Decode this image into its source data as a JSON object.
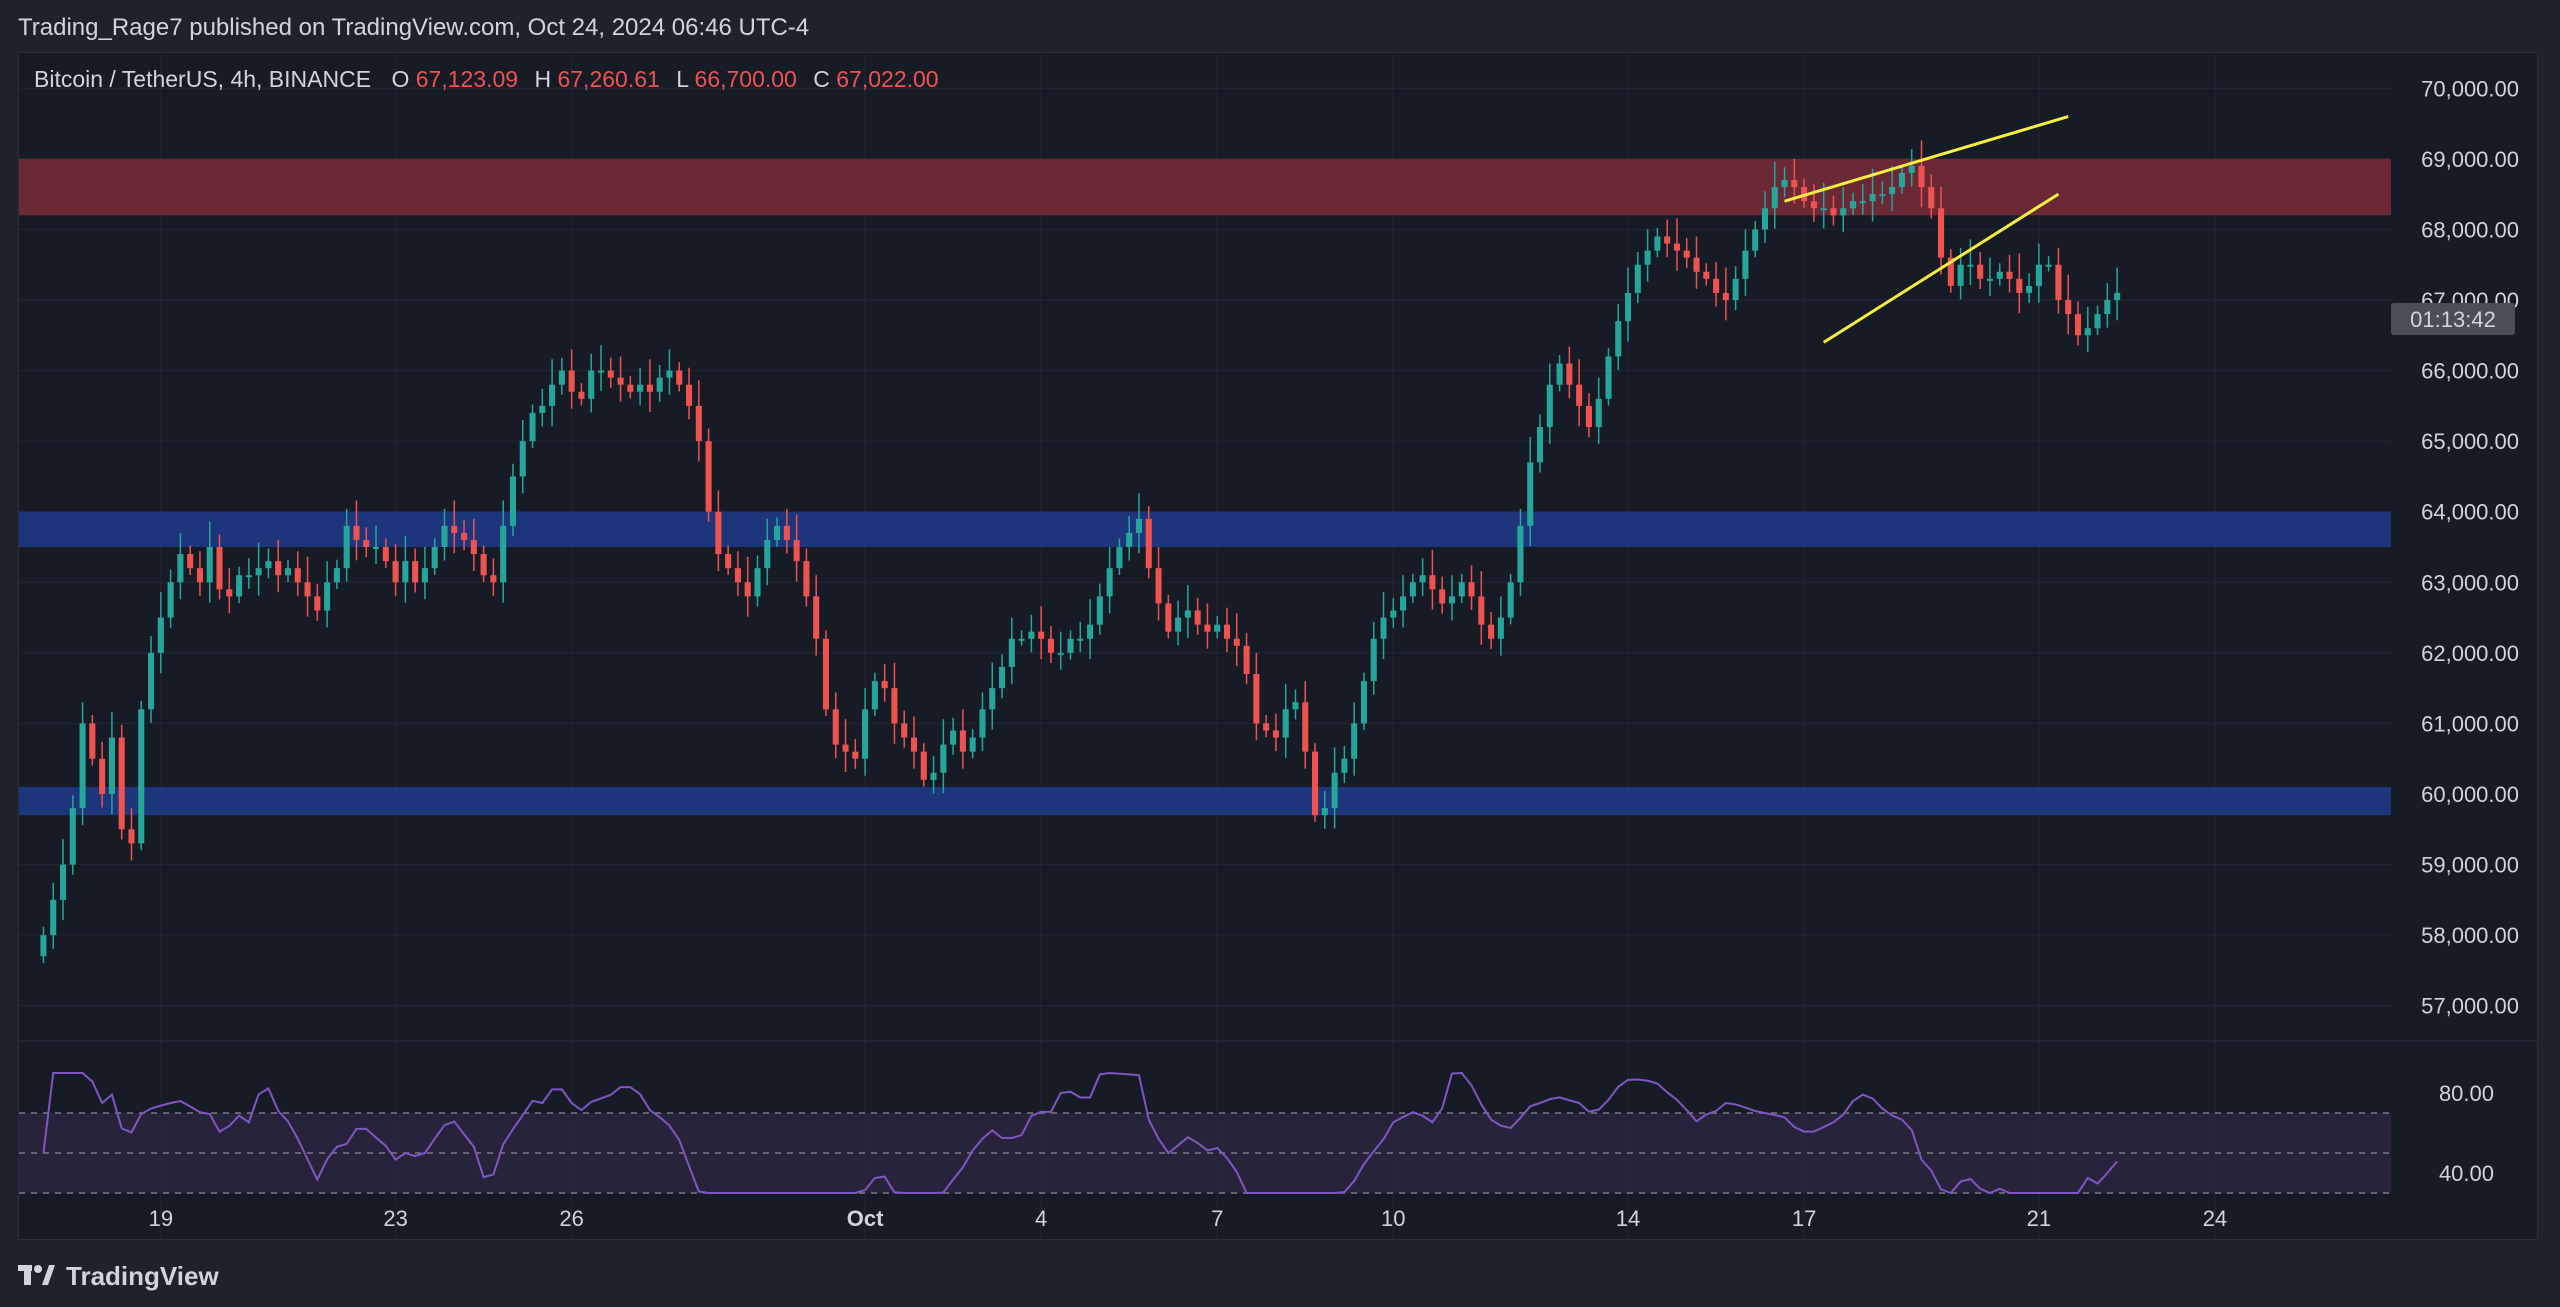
{
  "publish_info": "Trading_Rage7 published on TradingView.com, Oct 24, 2024 06:46 UTC-4",
  "symbol": {
    "name": "Bitcoin / TetherUS, 4h, BINANCE",
    "open_label": "O",
    "open": "67,123.09",
    "high_label": "H",
    "high": "67,260.61",
    "low_label": "L",
    "low": "66,700.00",
    "close_label": "C",
    "close": "67,022.00"
  },
  "countdown": "01:13:42",
  "brand": "TradingView",
  "colors": {
    "up": "#26a69a",
    "down": "#ef5350",
    "resistance_zone": "#7a2a38",
    "support_zone": "#1f3a8a",
    "wedge": "#f5ef42",
    "rsi_line": "#7e57c2",
    "rsi_band": "#2a2540"
  },
  "chart_data": {
    "type": "candlestick",
    "timeframe": "4h",
    "ylim": [
      56500,
      70500
    ],
    "y_ticks": [
      "70,000.00",
      "69,000.00",
      "68,000.00",
      "67,000.00",
      "66,000.00",
      "65,000.00",
      "64,000.00",
      "63,000.00",
      "62,000.00",
      "61,000.00",
      "60,000.00",
      "59,000.00",
      "58,000.00",
      "57,000.00"
    ],
    "x_ticks": [
      {
        "label": "19",
        "index": 12
      },
      {
        "label": "23",
        "index": 36
      },
      {
        "label": "26",
        "index": 54
      },
      {
        "label": "Oct",
        "index": 84
      },
      {
        "label": "4",
        "index": 102
      },
      {
        "label": "7",
        "index": 120
      },
      {
        "label": "10",
        "index": 138
      },
      {
        "label": "14",
        "index": 162
      },
      {
        "label": "17",
        "index": 180
      },
      {
        "label": "21",
        "index": 204
      },
      {
        "label": "24",
        "index": 222
      }
    ],
    "index_range": [
      -2.5,
      240
    ],
    "close_series_every_4h": [
      58000,
      58500,
      59000,
      59800,
      61000,
      60500,
      60000,
      60800,
      59500,
      59300,
      61200,
      62000,
      62500,
      63000,
      63400,
      63200,
      63000,
      63500,
      62900,
      62800,
      63100,
      63100,
      63200,
      63300,
      63100,
      63200,
      63000,
      62800,
      62600,
      63000,
      63200,
      63800,
      63600,
      63500,
      63500,
      63300,
      63000,
      63300,
      63000,
      63200,
      63500,
      63800,
      63700,
      63600,
      63400,
      63100,
      63000,
      63800,
      64500,
      65000,
      65400,
      65500,
      65800,
      66000,
      65700,
      65600,
      66000,
      66000,
      65900,
      65800,
      65700,
      65800,
      65700,
      65900,
      66000,
      65800,
      65500,
      65000,
      64000,
      63400,
      63200,
      63000,
      62800,
      63200,
      63600,
      63800,
      63600,
      63300,
      62800,
      62200,
      61200,
      60700,
      60600,
      60500,
      61200,
      61600,
      61500,
      61000,
      60800,
      60600,
      60200,
      60300,
      60700,
      60900,
      60600,
      60800,
      61200,
      61500,
      61800,
      62200,
      62200,
      62300,
      62200,
      62000,
      62000,
      62200,
      62200,
      62400,
      62800,
      63200,
      63500,
      63700,
      63900,
      63200,
      62700,
      62300,
      62500,
      62600,
      62400,
      62300,
      62400,
      62200,
      62100,
      61700,
      61000,
      60900,
      60800,
      61200,
      61300,
      60600,
      59700,
      59800,
      60300,
      60500,
      61000,
      61600,
      62200,
      62500,
      62600,
      62800,
      63000,
      63100,
      62900,
      62700,
      62800,
      63000,
      62800,
      62400,
      62200,
      62500,
      63000,
      63800,
      64700,
      65200,
      65800,
      66100,
      65800,
      65500,
      65200,
      65600,
      66200,
      66700,
      67100,
      67500,
      67700,
      67900,
      67800,
      67700,
      67600,
      67400,
      67300,
      67100,
      67000,
      67300,
      67700,
      68000,
      68300,
      68600,
      68700,
      68600,
      68400,
      68300,
      68300,
      68200,
      68300,
      68400,
      68400,
      68500,
      68500,
      68600,
      68800,
      68900,
      68600,
      68300,
      67600,
      67200,
      67500,
      67500,
      67300,
      67300,
      67400,
      67300,
      67100,
      67200,
      67500,
      67500,
      67000,
      66800,
      66500,
      66600,
      66800,
      67000,
      67100
    ],
    "last_close": 67022.0,
    "zones": [
      {
        "name": "resistance",
        "from": 68200,
        "to": 69000
      },
      {
        "name": "support",
        "from": 63500,
        "to": 64000
      },
      {
        "name": "support",
        "from": 59700,
        "to": 60100
      }
    ],
    "wedge_lines": [
      {
        "from": {
          "index": 178,
          "price": 68400
        },
        "to": {
          "index": 207,
          "price": 69600
        }
      },
      {
        "from": {
          "index": 182,
          "price": 66400
        },
        "to": {
          "index": 206,
          "price": 68500
        }
      }
    ],
    "rsi": {
      "ylim": [
        30,
        90
      ],
      "ticks": [
        "80.00",
        "40.00"
      ],
      "upper": 70,
      "middle": 50,
      "lower": 30
    }
  }
}
